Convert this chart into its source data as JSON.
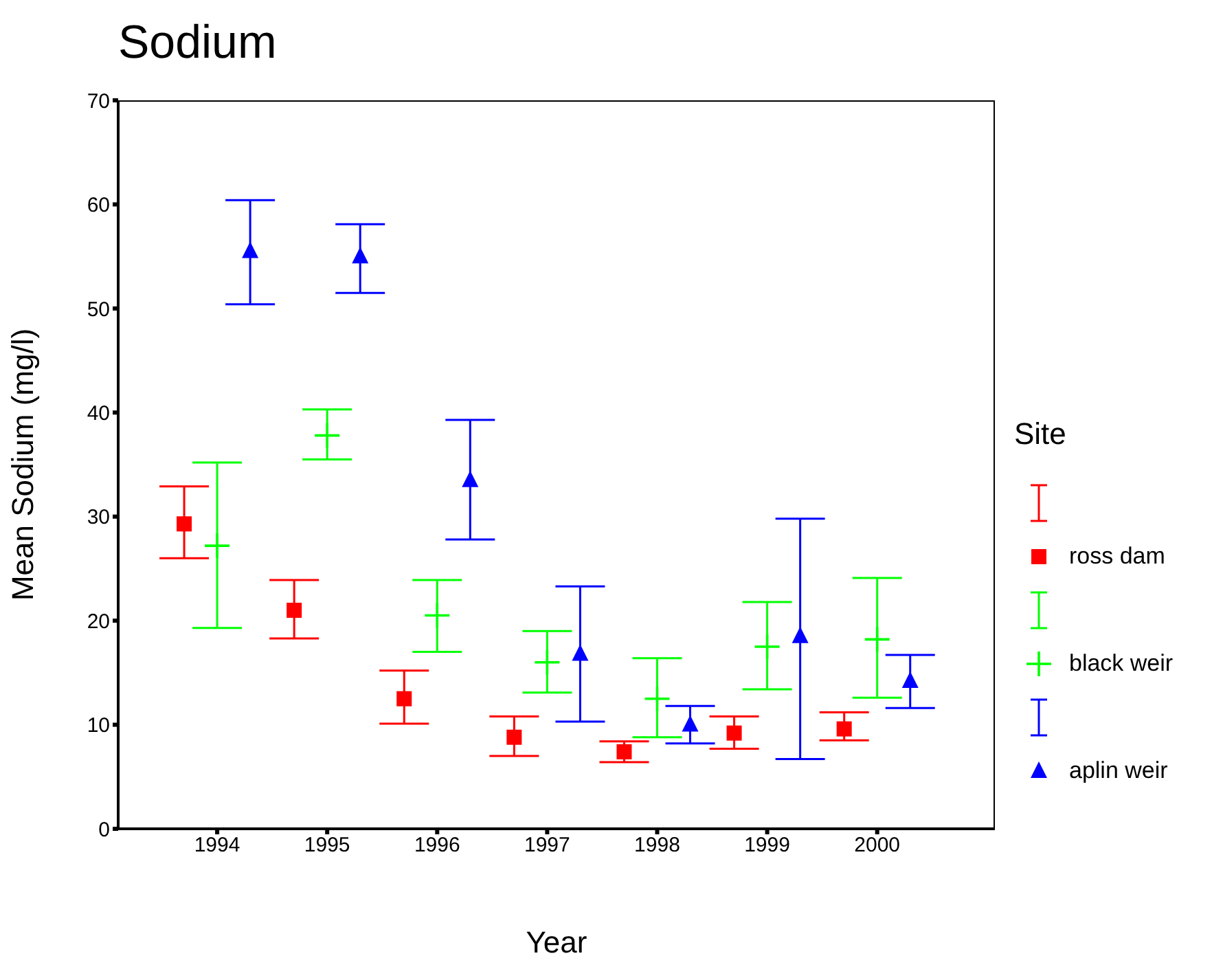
{
  "chart_data": {
    "type": "scatter",
    "title": "Sodium",
    "xlabel": "Year",
    "ylabel": "Mean Sodium (mg/l)",
    "legend_title": "Site",
    "legend": "right",
    "categories": [
      "1994",
      "1995",
      "1996",
      "1997",
      "1998",
      "1999",
      "2000"
    ],
    "ylim": [
      0,
      70
    ],
    "yticks": [
      0,
      10,
      20,
      30,
      40,
      50,
      60,
      70
    ],
    "series": [
      {
        "name": "ross dam",
        "color": "#ff0000",
        "marker": "square",
        "values": [
          29.3,
          21.0,
          12.5,
          8.8,
          7.4,
          9.2,
          9.6
        ],
        "errors": [
          [
            26.0,
            32.9
          ],
          [
            18.3,
            23.9
          ],
          [
            10.1,
            15.2
          ],
          [
            7.0,
            10.8
          ],
          [
            6.4,
            8.4
          ],
          [
            7.7,
            10.8
          ],
          [
            8.5,
            11.2
          ]
        ]
      },
      {
        "name": "black weir",
        "color": "#00ff00",
        "marker": "cross",
        "values": [
          27.2,
          37.8,
          20.5,
          16.0,
          12.5,
          17.5,
          18.2
        ],
        "errors": [
          [
            19.3,
            35.2
          ],
          [
            35.5,
            40.3
          ],
          [
            17.0,
            23.9
          ],
          [
            13.1,
            19.0
          ],
          [
            8.8,
            16.4
          ],
          [
            13.4,
            21.8
          ],
          [
            12.6,
            24.1
          ]
        ]
      },
      {
        "name": "aplin weir",
        "color": "#0000ff",
        "marker": "triangle",
        "values": [
          55.5,
          55.0,
          33.5,
          16.8,
          10.0,
          18.5,
          14.2
        ],
        "errors": [
          [
            50.4,
            60.4
          ],
          [
            51.5,
            58.1
          ],
          [
            27.8,
            39.3
          ],
          [
            10.3,
            23.3
          ],
          [
            8.2,
            11.8
          ],
          [
            6.7,
            29.8
          ],
          [
            11.6,
            16.7
          ]
        ]
      }
    ]
  }
}
